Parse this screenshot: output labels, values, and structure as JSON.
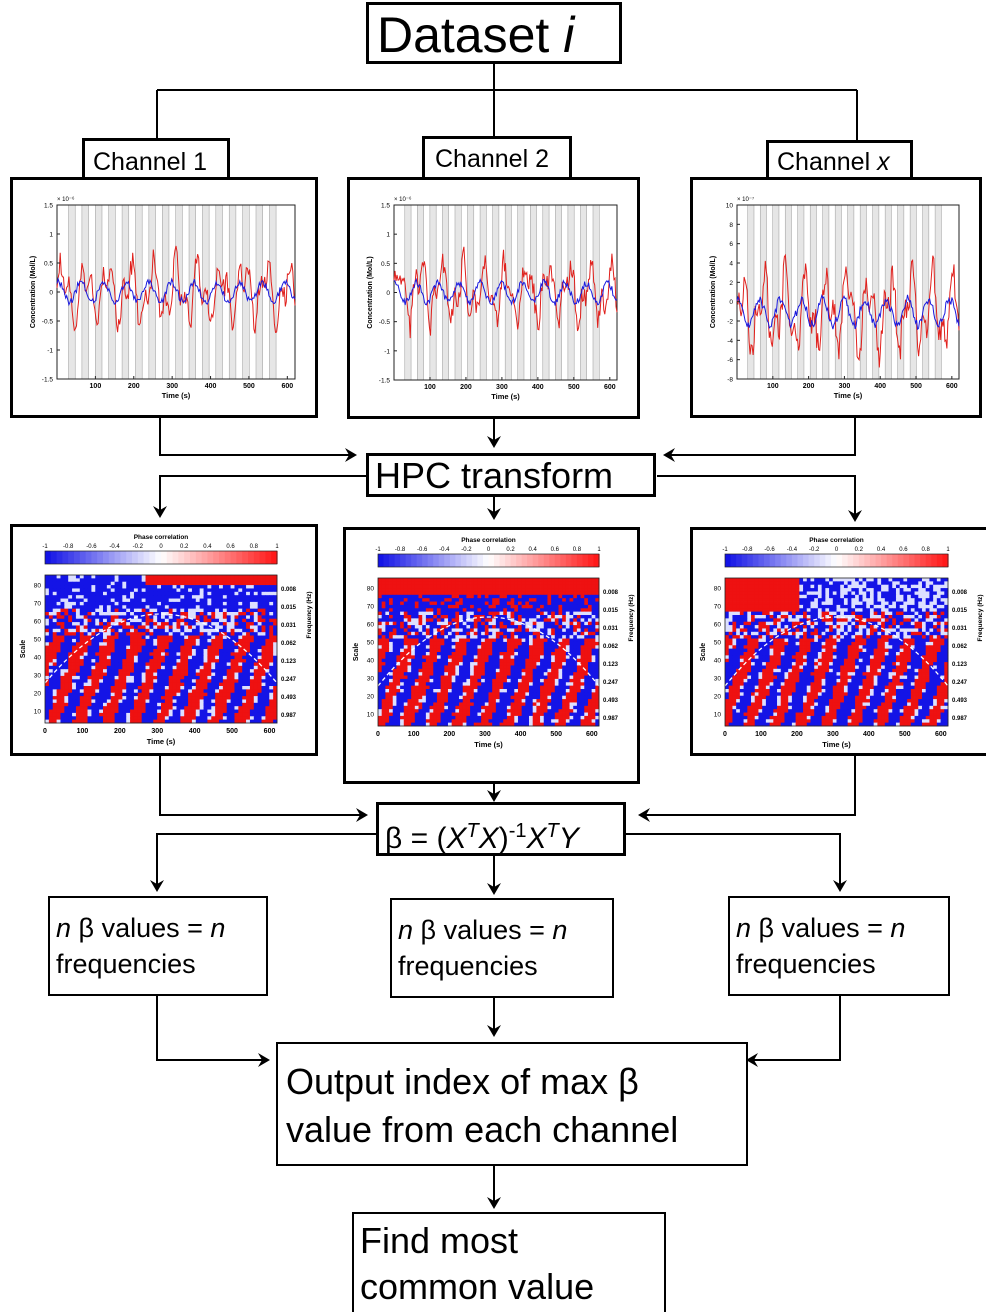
{
  "diagram": {
    "title": {
      "text": "Dataset ",
      "var": "i"
    },
    "channels": [
      {
        "prefix": "Channel 1",
        "var": ""
      },
      {
        "prefix": "Channel 2",
        "var": ""
      },
      {
        "prefix": "Channel ",
        "var": "x"
      }
    ],
    "hpc_label": "HPC transform",
    "beta_formula": {
      "lead": "β = (",
      "x1": "X",
      "t1": "T",
      "x2": "X",
      "close": ")",
      "inv": "-1",
      "x3": "X",
      "t2": "T",
      "y": "Y"
    },
    "nbeta": {
      "n1": "n",
      "mid": " β values = ",
      "n2": "n",
      "line2": "frequencies"
    },
    "output_lines": [
      "Output index of max β",
      "value from each channel"
    ],
    "final_lines": [
      "Find most",
      "common value"
    ]
  },
  "signal_plots": {
    "xlabel": "Time (s)",
    "ylabel": "Concentration (Mol/L)",
    "x_ticks": [
      "100",
      "200",
      "300",
      "400",
      "500",
      "600"
    ],
    "colors": {
      "series_a": "#e0201c",
      "series_b": "#1a1adf",
      "blocks": "#e6e6e6"
    },
    "panels": [
      {
        "exponent": "× 10⁻⁶",
        "y_ticks": [
          "1.5",
          "1",
          "0.5",
          "0",
          "-0.5",
          "-1",
          "-1.5"
        ],
        "ylim": [
          -1.5,
          1.5
        ]
      },
      {
        "exponent": "× 10⁻⁶",
        "y_ticks": [
          "1.5",
          "1",
          "0.5",
          "0",
          "-0.5",
          "-1",
          "-1.5"
        ],
        "ylim": [
          -1.5,
          1.5
        ]
      },
      {
        "exponent": "× 10⁻⁷",
        "y_ticks": [
          "10",
          "8",
          "6",
          "4",
          "2",
          "0",
          "-2",
          "-4",
          "-6",
          "-8"
        ],
        "ylim": [
          -8,
          10
        ]
      }
    ]
  },
  "heatmaps": {
    "colorbar_title": "Phase correlation",
    "colorbar_ticks": [
      "-1",
      "-0.8",
      "-0.6",
      "-0.4",
      "-0.2",
      "0",
      "0.2",
      "0.4",
      "0.6",
      "0.8",
      "1"
    ],
    "xlabel": "Time (s)",
    "ylabel": "Scale",
    "right_label": "Frequency (Hz)",
    "x_ticks": [
      "0",
      "100",
      "200",
      "300",
      "400",
      "500",
      "600"
    ],
    "y_ticks": [
      "80",
      "70",
      "60",
      "50",
      "40",
      "30",
      "20",
      "10"
    ],
    "freq_ticks": [
      "0.008",
      "0.015",
      "0.031",
      "0.062",
      "0.123",
      "0.247",
      "0.493",
      "0.987"
    ],
    "colors": {
      "neg": "#1414e6",
      "pos": "#ee1111",
      "zero": "#ffffff"
    }
  }
}
